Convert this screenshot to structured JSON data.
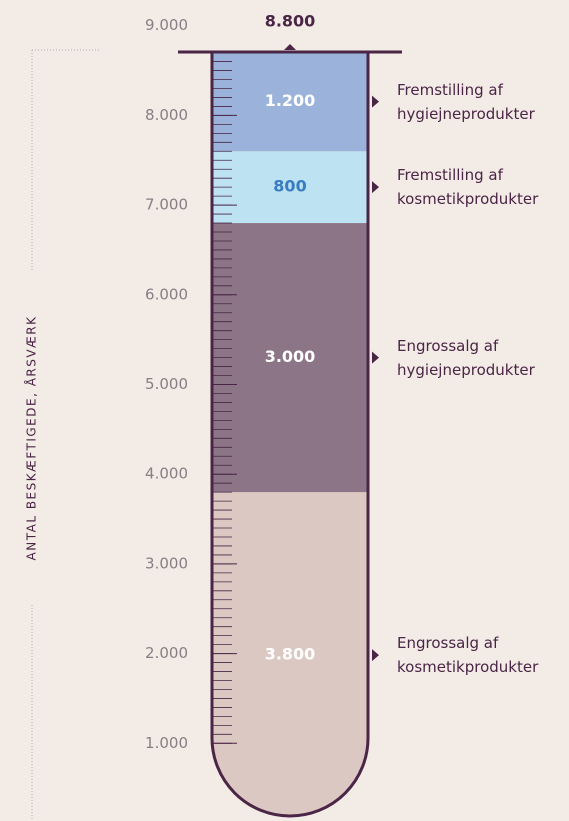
{
  "chart_data": {
    "type": "stacked_bar",
    "y_label": "ANTAL BESKÆFTIGEDE, ÅRSVÆRK",
    "total": {
      "value": 8800,
      "label": "8.800"
    },
    "ylim": [
      0,
      9000
    ],
    "yticks": [
      {
        "value": 1000,
        "label": "1.000"
      },
      {
        "value": 2000,
        "label": "2.000"
      },
      {
        "value": 3000,
        "label": "3.000"
      },
      {
        "value": 4000,
        "label": "4.000"
      },
      {
        "value": 5000,
        "label": "5.000"
      },
      {
        "value": 6000,
        "label": "6.000"
      },
      {
        "value": 7000,
        "label": "7.000"
      },
      {
        "value": 8000,
        "label": "8.000"
      },
      {
        "value": 9000,
        "label": "9.000"
      }
    ],
    "series": [
      {
        "name": "Engrossalg af kosmetikprodukter",
        "color": "#dcc8c2",
        "label_color": "#ffffff",
        "values": [
          3800
        ],
        "value_labels": [
          "3.800"
        ]
      },
      {
        "name": "Engrossalg af hygiejneprodukter",
        "color": "#8b7587",
        "label_color": "#ffffff",
        "values": [
          3000
        ],
        "value_labels": [
          "3.000"
        ]
      },
      {
        "name": "Fremstilling af kosmetikprodukter",
        "color": "#bde3f3",
        "label_color": "#3a7cc0",
        "values": [
          800
        ],
        "value_labels": [
          "800"
        ]
      },
      {
        "name": "Fremstilling af hygiejneprodukter",
        "color": "#9bb3da",
        "label_color": "#ffffff",
        "values": [
          1200
        ],
        "value_labels": [
          "1.200"
        ]
      }
    ]
  }
}
